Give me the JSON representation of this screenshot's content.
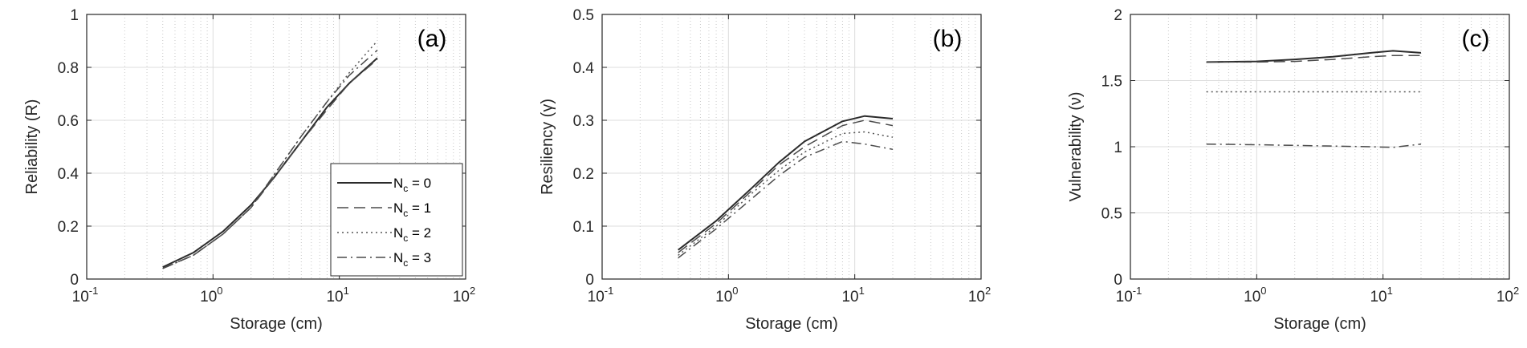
{
  "chart_data": [
    {
      "type": "line",
      "panel_label": "(a)",
      "xlabel": "Storage (cm)",
      "ylabel": "Reliability (R)",
      "xscale": "log",
      "xlim": [
        0.1,
        100
      ],
      "ylim": [
        0,
        1
      ],
      "xticks": [
        0.1,
        1,
        10,
        100
      ],
      "xtick_labels": [
        {
          "base": "10",
          "exp": "-1"
        },
        {
          "base": "10",
          "exp": "0"
        },
        {
          "base": "10",
          "exp": "1"
        },
        {
          "base": "10",
          "exp": "2"
        }
      ],
      "yticks": [
        0,
        0.2,
        0.4,
        0.6,
        0.8,
        1
      ],
      "ytick_labels": [
        "0",
        "0.2",
        "0.4",
        "0.6",
        "0.8",
        "1"
      ],
      "grid": true,
      "legend": {
        "position": "lower-right",
        "entries": [
          {
            "prefix": "N",
            "sub": "c",
            "suffix": " = 0"
          },
          {
            "prefix": "N",
            "sub": "c",
            "suffix": " = 1"
          },
          {
            "prefix": "N",
            "sub": "c",
            "suffix": " = 2"
          },
          {
            "prefix": "N",
            "sub": "c",
            "suffix": " = 3"
          }
        ]
      },
      "series": [
        {
          "name": "Nc = 0",
          "style": "solid",
          "x": [
            0.4,
            0.7,
            1.2,
            2,
            3,
            5,
            8,
            12,
            20
          ],
          "y": [
            0.045,
            0.1,
            0.18,
            0.28,
            0.38,
            0.52,
            0.65,
            0.74,
            0.835
          ]
        },
        {
          "name": "Nc = 1",
          "style": "dashed",
          "x": [
            0.4,
            0.7,
            1.2,
            2,
            3,
            5,
            8,
            12,
            20
          ],
          "y": [
            0.04,
            0.09,
            0.17,
            0.27,
            0.38,
            0.52,
            0.64,
            0.74,
            0.83
          ]
        },
        {
          "name": "Nc = 2",
          "style": "dotted",
          "x": [
            0.4,
            0.7,
            1.2,
            2,
            3,
            5,
            8,
            12,
            20
          ],
          "y": [
            0.04,
            0.09,
            0.17,
            0.27,
            0.39,
            0.54,
            0.67,
            0.78,
            0.9
          ]
        },
        {
          "name": "Nc = 3",
          "style": "dashdot",
          "x": [
            0.4,
            0.7,
            1.2,
            2,
            3,
            5,
            8,
            12,
            20
          ],
          "y": [
            0.04,
            0.09,
            0.17,
            0.27,
            0.39,
            0.54,
            0.67,
            0.77,
            0.865
          ]
        }
      ]
    },
    {
      "type": "line",
      "panel_label": "(b)",
      "xlabel": "Storage (cm)",
      "ylabel": "Resiliency (γ)",
      "xscale": "log",
      "xlim": [
        0.1,
        100
      ],
      "ylim": [
        0,
        0.5
      ],
      "xticks": [
        0.1,
        1,
        10,
        100
      ],
      "xtick_labels": [
        {
          "base": "10",
          "exp": "-1"
        },
        {
          "base": "10",
          "exp": "0"
        },
        {
          "base": "10",
          "exp": "1"
        },
        {
          "base": "10",
          "exp": "2"
        }
      ],
      "yticks": [
        0,
        0.1,
        0.2,
        0.3,
        0.4,
        0.5
      ],
      "ytick_labels": [
        "0",
        "0.1",
        "0.2",
        "0.3",
        "0.4",
        "0.5"
      ],
      "grid": true,
      "series": [
        {
          "name": "Nc = 0",
          "style": "solid",
          "x": [
            0.4,
            0.8,
            1.5,
            2.5,
            4,
            8,
            12,
            20
          ],
          "y": [
            0.055,
            0.11,
            0.17,
            0.22,
            0.26,
            0.298,
            0.308,
            0.303
          ]
        },
        {
          "name": "Nc = 1",
          "style": "dashed",
          "x": [
            0.4,
            0.8,
            1.5,
            2.5,
            4,
            8,
            12,
            20
          ],
          "y": [
            0.05,
            0.105,
            0.165,
            0.215,
            0.25,
            0.29,
            0.3,
            0.29
          ]
        },
        {
          "name": "Nc = 2",
          "style": "dotted",
          "x": [
            0.4,
            0.8,
            1.5,
            2.5,
            4,
            8,
            12,
            20
          ],
          "y": [
            0.045,
            0.1,
            0.16,
            0.205,
            0.24,
            0.275,
            0.278,
            0.268
          ]
        },
        {
          "name": "Nc = 3",
          "style": "dashdot",
          "x": [
            0.4,
            0.8,
            1.5,
            2.5,
            4,
            8,
            12,
            20
          ],
          "y": [
            0.04,
            0.095,
            0.15,
            0.195,
            0.23,
            0.26,
            0.255,
            0.245
          ]
        }
      ]
    },
    {
      "type": "line",
      "panel_label": "(c)",
      "xlabel": "Storage (cm)",
      "ylabel": "Vulnerability (ν)",
      "xscale": "log",
      "xlim": [
        0.1,
        100
      ],
      "ylim": [
        0,
        2
      ],
      "xticks": [
        0.1,
        1,
        10,
        100
      ],
      "xtick_labels": [
        {
          "base": "10",
          "exp": "-1"
        },
        {
          "base": "10",
          "exp": "0"
        },
        {
          "base": "10",
          "exp": "1"
        },
        {
          "base": "10",
          "exp": "2"
        }
      ],
      "yticks": [
        0,
        0.5,
        1,
        1.5,
        2
      ],
      "ytick_labels": [
        "0",
        "0.5",
        "1",
        "1.5",
        "2"
      ],
      "grid": true,
      "series": [
        {
          "name": "Nc = 0",
          "style": "solid",
          "x": [
            0.4,
            1,
            2,
            4,
            8,
            12,
            20
          ],
          "y": [
            1.64,
            1.645,
            1.66,
            1.68,
            1.71,
            1.725,
            1.71
          ]
        },
        {
          "name": "Nc = 1",
          "style": "dashed",
          "x": [
            0.4,
            1,
            2,
            4,
            8,
            12,
            20
          ],
          "y": [
            1.64,
            1.64,
            1.645,
            1.66,
            1.68,
            1.69,
            1.69
          ]
        },
        {
          "name": "Nc = 2",
          "style": "dotted",
          "x": [
            0.4,
            1,
            2,
            4,
            8,
            12,
            20
          ],
          "y": [
            1.415,
            1.415,
            1.415,
            1.415,
            1.415,
            1.415,
            1.415
          ]
        },
        {
          "name": "Nc = 3",
          "style": "dashdot",
          "x": [
            0.4,
            1,
            2,
            4,
            8,
            12,
            20
          ],
          "y": [
            1.02,
            1.015,
            1.01,
            1.005,
            1.0,
            0.995,
            1.02
          ]
        }
      ]
    }
  ],
  "colors": {
    "axis": "#262626",
    "grid": "#dcdcdc",
    "minor_grid": "#c8c8c8",
    "series": [
      "#2b2b2b",
      "#4a4a4a",
      "#555555",
      "#4a4a4a"
    ]
  }
}
